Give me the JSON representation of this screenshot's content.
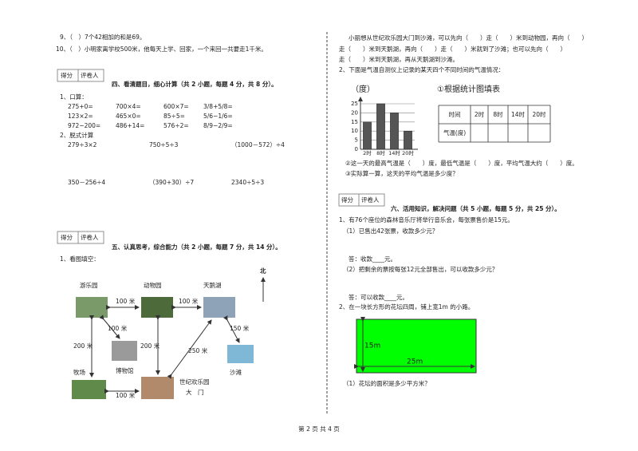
{
  "left": {
    "q9": "9、（　）7个42相加的和是69。",
    "q10": "10、（　）小明家离学校500米，他每天上学、回家，一个来回一共要走1千米。",
    "section4": {
      "score_box": [
        "得分",
        "评卷人"
      ],
      "title": "四、看清题目，细心计算（共 2 小题，每题 4 分，共 8 分）。",
      "oral_label": "1、口算：",
      "oral": [
        [
          "275+0=",
          "700×4=",
          "600×7=",
          "3/8+5/8="
        ],
        [
          "123×2=",
          "465×0=",
          "85÷5=",
          "5/6−1/6="
        ],
        [
          "972−200=",
          "486+14=",
          "576÷2=",
          "8/9−2/9="
        ]
      ],
      "steps_label": "2、脱式计算",
      "steps": [
        [
          "279÷3×2",
          "750÷5÷3",
          "（1000－572）÷4"
        ],
        [
          "350－256÷4",
          "（390+30）÷7",
          "2340÷5÷3"
        ]
      ]
    },
    "section5": {
      "score_box": [
        "得分",
        "评卷人"
      ],
      "title": "五、认真思考，综合能力（共 2 小题，每题 7 分，共 14 分）。",
      "q1": "1、看图填空：",
      "map": {
        "north": "北",
        "places": [
          "游乐园",
          "动物园",
          "天鹅湖",
          "博物馆",
          "牧场",
          "沙滩",
          "世纪欢乐园",
          "大　门"
        ],
        "distances": [
          "100 米",
          "100 米",
          "100 米",
          "200 米",
          "200 米",
          "250 米",
          "150 米",
          "100 米"
        ]
      }
    }
  },
  "right": {
    "fill_lines": [
      "小丽想从世纪欢乐园大门到沙滩，可以先向（　　）走（　　）米到动物园，再向（　　）",
      "走（　　）米到天鹅湖，再向（　　）走（　　）米就到了沙滩；也可以先向（　　）",
      "走（　　）米到天鹅湖，再从天鹅湖到沙滩。"
    ],
    "q2": "2、下面是气温自测仪上记录的某天四个不同时间的气温情况：",
    "table_title": "①根据统计图填表",
    "table_header": [
      "时间",
      "2时",
      "8时",
      "14时",
      "20时"
    ],
    "table_row_label": "气温(度)",
    "q2_2": "②这一天的最高气温是（　　）度，最低气温是（　　）度，平均气温大约（　　）度。",
    "q2_3": "③实际算一算，这天的平均气温是多少度？",
    "section6": {
      "score_box": [
        "得分",
        "评卷人"
      ],
      "title": "六、活用知识，解决问题（共 5 小题，每题 5 分，共 25 分）。",
      "p1": "1、有76个座位的森林音乐厅将举行音乐会，每张票售价是15元。",
      "p1_1": "（1）已售出42张票，收款多少元？",
      "a1_1": "答：收款____元。",
      "p1_2": "（2）把剩余的票按每张12元全部售出，可以收款多少元？",
      "a1_2": "答：可以收款____元。",
      "p2": "2、在一块长方形的花坛四周，铺上宽1m 的小路。",
      "width_label": "15m",
      "length_label": "25m",
      "p2_1": "（1）花坛的面积是多少平方米？"
    }
  },
  "chart_data": {
    "type": "bar",
    "y_label": "（度）",
    "categories": [
      "2时",
      "8时",
      "14时",
      "20时"
    ],
    "values": [
      15,
      25,
      20,
      10
    ],
    "color": "#555",
    "ylim": [
      0,
      25
    ],
    "yticks": [
      0,
      5,
      10,
      15,
      20,
      25
    ],
    "grid": true
  },
  "footer": "第 2 页 共 4 页"
}
